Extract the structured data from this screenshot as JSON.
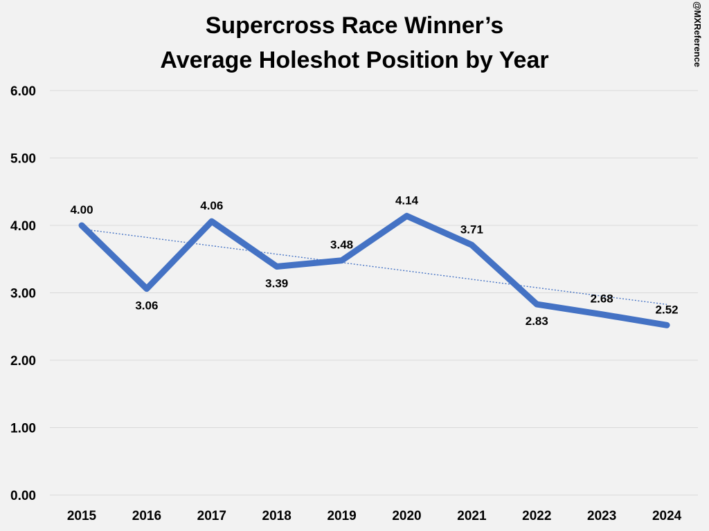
{
  "chart_data": {
    "type": "line",
    "title_lines": [
      "Supercross Race Winner’s",
      "Average Holeshot Position by Year"
    ],
    "watermark": "@MXReference",
    "categories": [
      "2015",
      "2016",
      "2017",
      "2018",
      "2019",
      "2020",
      "2021",
      "2022",
      "2023",
      "2024"
    ],
    "series": [
      {
        "name": "Average Holeshot Position",
        "values": [
          4.0,
          3.06,
          4.06,
          3.39,
          3.48,
          4.14,
          3.71,
          2.83,
          2.68,
          2.52
        ],
        "labels": [
          "4.00",
          "3.06",
          "4.06",
          "3.39",
          "3.48",
          "4.14",
          "3.71",
          "2.83",
          "2.68",
          "2.52"
        ],
        "label_positions": [
          "above",
          "below",
          "above",
          "below",
          "above",
          "above",
          "above",
          "below",
          "above",
          "above"
        ]
      }
    ],
    "trendline": {
      "type": "linear",
      "style": "dotted"
    },
    "ylim": [
      0,
      6
    ],
    "yticks": [
      "0.00",
      "1.00",
      "2.00",
      "3.00",
      "4.00",
      "5.00",
      "6.00"
    ],
    "grid": true,
    "legend": "none",
    "xlabel": "",
    "ylabel": ""
  },
  "colors": {
    "series": "#4472c4",
    "grid": "#d9d9d9",
    "background": "#f2f2f2",
    "text": "#000000"
  }
}
